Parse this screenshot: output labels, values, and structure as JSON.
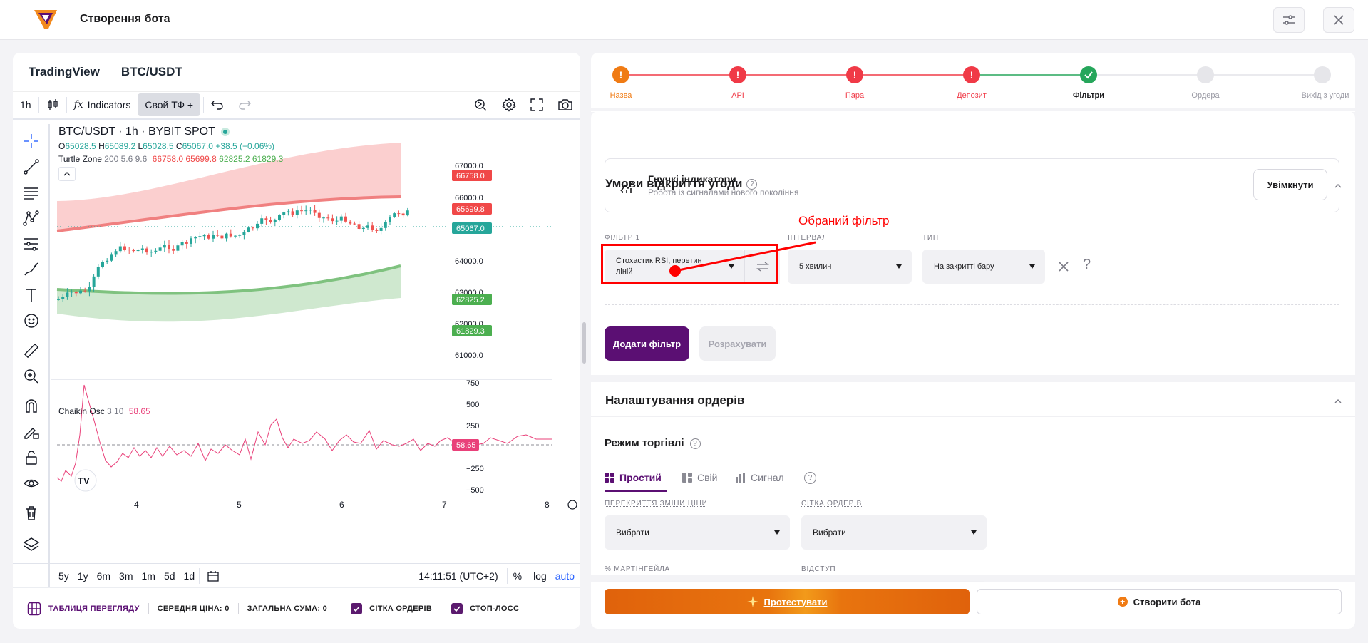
{
  "app": {
    "title": "Створення бота"
  },
  "chart_header": {
    "platform": "TradingView",
    "pair": "BTC/USDT"
  },
  "toolbar": {
    "interval": "1h",
    "indicators": "Indicators",
    "custom_tf": "Свой ТФ +"
  },
  "legend": {
    "title": "BTC/USDT · 1h · BYBIT SPOT",
    "o_label": "O",
    "o": "65028.5",
    "h_label": "H",
    "h": "65089.2",
    "l_label": "L",
    "l": "65028.5",
    "c_label": "C",
    "c": "65067.0",
    "change": "+38.5 (+0.06%)",
    "turtle_name": "Turtle Zone",
    "turtle_params": "200 5.6 9.6",
    "turtle_v1": "66758.0",
    "turtle_v2": "65699.8",
    "turtle_v3": "62825.2",
    "turtle_v4": "61829.3",
    "chaikin_name": "Chaikin Osc",
    "chaikin_params": "3 10",
    "chaikin_value": "58.65"
  },
  "price_axis": {
    "ticks": [
      "67000.0",
      "66000.0",
      "64000.0",
      "63000.0",
      "62000.0",
      "61000.0"
    ],
    "tags": [
      "66758.0",
      "65699.8",
      "65067.0",
      "62825.2",
      "61829.3"
    ]
  },
  "osc_axis": {
    "ticks": [
      "750",
      "500",
      "250",
      "−250",
      "−500"
    ],
    "tag": "58.65"
  },
  "time_axis": {
    "ticks": [
      "4",
      "5",
      "6",
      "7",
      "8"
    ]
  },
  "bottom_tf": {
    "ranges": [
      "5y",
      "1y",
      "6m",
      "3m",
      "1m",
      "5d",
      "1d"
    ],
    "clock": "14:11:51 (UTC+2)",
    "pct": "%",
    "log": "log",
    "auto": "auto"
  },
  "summary": {
    "table": "ТАБЛИЦЯ ПЕРЕГЛЯДУ",
    "avg_price": "СЕРЕДНЯ ЦІНА: 0",
    "total": "ЗАГАЛЬНА СУМА: 0",
    "grid": "СІТКА ОРДЕРІВ",
    "stop": "СТОП-ЛОСС"
  },
  "steps": [
    {
      "label": "Назва",
      "state": "warning"
    },
    {
      "label": "API",
      "state": "error"
    },
    {
      "label": "Пара",
      "state": "error"
    },
    {
      "label": "Депозит",
      "state": "error"
    },
    {
      "label": "Фільтри",
      "state": "done"
    },
    {
      "label": "Ордера",
      "state": "pending"
    },
    {
      "label": "Вихід з угоди",
      "state": "pending"
    }
  ],
  "open_conditions": {
    "title": "Умови відкриття угоди",
    "flex_title": "Гнучкі індикатори",
    "flex_sub": "Робота із сигналами нового покоління",
    "enable": "Увімкнути",
    "annotation": "Обраний фільтр",
    "filter_label": "ФІЛЬТР 1",
    "filter_value_1": "Стохастик RSI, перетин",
    "filter_value_2": "ліній",
    "interval_label": "ІНТЕРВАЛ",
    "interval_value": "5 хвилин",
    "type_label": "ТИП",
    "type_value": "На закритті бару",
    "add_filter": "Додати фільтр",
    "calculate": "Розрахувати"
  },
  "orders": {
    "title": "Налаштування ордерів",
    "mode_title": "Режим торгівлі",
    "tabs": [
      "Простий",
      "Свій",
      "Сигнал"
    ],
    "overlap_label": "ПЕРЕКРИТТЯ ЗМІНИ ЦІНИ",
    "overlap_value": "Вибрати",
    "grid_label": "СІТКА ОРДЕРІВ",
    "grid_value": "Вибрати",
    "martingale_label": "% МАРТІНГЕЙЛА",
    "indent_label": "ВІДСТУП"
  },
  "actions": {
    "test": "Протестувати",
    "create": "Створити бота"
  },
  "colors": {
    "brand": "#5b0f73",
    "orange": "#e8620c",
    "error": "#f03a47",
    "success": "#26a65b",
    "annotation": "#ff0000"
  }
}
